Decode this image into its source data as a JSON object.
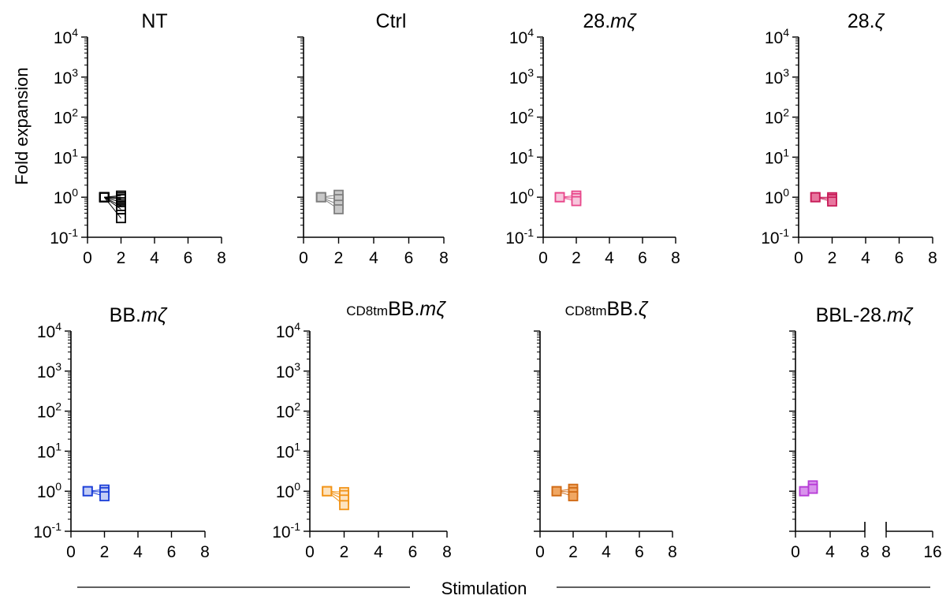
{
  "figure": {
    "ylabel": "Fold expansion",
    "xlabel": "Stimulation",
    "y_ticks": [
      {
        "base": "10",
        "exp": "4"
      },
      {
        "base": "10",
        "exp": "3"
      },
      {
        "base": "10",
        "exp": "2"
      },
      {
        "base": "10",
        "exp": "1"
      },
      {
        "base": "10",
        "exp": "0"
      },
      {
        "base": "10",
        "exp": "-1"
      }
    ]
  },
  "chart_data": [
    {
      "type": "line",
      "title": "NT",
      "title_parts": [
        {
          "text": "NT",
          "italic": false
        }
      ],
      "color": "#000000",
      "fill": "none",
      "y_scale": "log",
      "ylim": [
        0.1,
        10000
      ],
      "xlim": [
        0,
        8
      ],
      "xticks": [
        "0",
        "2",
        "4",
        "6",
        "8"
      ],
      "show_y_tick_labels": true,
      "ylabel_shown": true,
      "series": [
        {
          "x": [
            1,
            2
          ],
          "y": [
            1.0,
            1.1
          ]
        },
        {
          "x": [
            1,
            2
          ],
          "y": [
            1.0,
            1.0
          ]
        },
        {
          "x": [
            1,
            2
          ],
          "y": [
            1.0,
            0.9
          ]
        },
        {
          "x": [
            1,
            2
          ],
          "y": [
            1.0,
            0.75
          ]
        },
        {
          "x": [
            1,
            2
          ],
          "y": [
            1.0,
            0.6
          ]
        },
        {
          "x": [
            1,
            2
          ],
          "y": [
            1.0,
            0.5
          ]
        },
        {
          "x": [
            1,
            2
          ],
          "y": [
            1.0,
            0.3
          ]
        }
      ]
    },
    {
      "type": "line",
      "title": "Ctrl",
      "title_parts": [
        {
          "text": "Ctrl",
          "italic": false
        }
      ],
      "color": "#7f7f7f",
      "fill": "#c8c8c8",
      "y_scale": "log",
      "ylim": [
        0.1,
        10000
      ],
      "xlim": [
        0,
        8
      ],
      "xticks": [
        "0",
        "2",
        "4",
        "6",
        "8"
      ],
      "show_y_tick_labels": false,
      "series": [
        {
          "x": [
            1,
            2
          ],
          "y": [
            1.0,
            1.15
          ]
        },
        {
          "x": [
            1,
            2
          ],
          "y": [
            1.0,
            0.9
          ]
        },
        {
          "x": [
            1,
            2
          ],
          "y": [
            1.0,
            0.65
          ]
        },
        {
          "x": [
            1,
            2
          ],
          "y": [
            1.0,
            0.5
          ]
        }
      ]
    },
    {
      "type": "line",
      "title": "28.mζ",
      "title_parts": [
        {
          "text": "28.",
          "italic": false
        },
        {
          "text": "mζ",
          "italic": true
        }
      ],
      "color": "#e8488b",
      "fill": "#f7c6dc",
      "y_scale": "log",
      "ylim": [
        0.1,
        10000
      ],
      "xlim": [
        0,
        8
      ],
      "xticks": [
        "0",
        "2",
        "4",
        "6",
        "8"
      ],
      "show_y_tick_labels": true,
      "series": [
        {
          "x": [
            1,
            2
          ],
          "y": [
            1.0,
            1.1
          ]
        },
        {
          "x": [
            1,
            2
          ],
          "y": [
            1.0,
            0.95
          ]
        },
        {
          "x": [
            1,
            2
          ],
          "y": [
            1.0,
            0.8
          ]
        }
      ]
    },
    {
      "type": "line",
      "title": "28.ζ",
      "title_parts": [
        {
          "text": "28.",
          "italic": false
        },
        {
          "text": "ζ",
          "italic": true
        }
      ],
      "color": "#c81e5a",
      "fill": "#e8779f",
      "y_scale": "log",
      "ylim": [
        0.1,
        10000
      ],
      "xlim": [
        0,
        8
      ],
      "xticks": [
        "0",
        "2",
        "4",
        "6",
        "8"
      ],
      "show_y_tick_labels": true,
      "series": [
        {
          "x": [
            1,
            2
          ],
          "y": [
            1.0,
            1.0
          ]
        },
        {
          "x": [
            1,
            2
          ],
          "y": [
            1.0,
            0.9
          ]
        },
        {
          "x": [
            1,
            2
          ],
          "y": [
            1.0,
            0.78
          ]
        }
      ]
    },
    {
      "type": "line",
      "title": "BB.mζ",
      "title_parts": [
        {
          "text": "BB.",
          "italic": false
        },
        {
          "text": "mζ",
          "italic": true
        }
      ],
      "color": "#1c3fd8",
      "fill": "#c3cdf5",
      "y_scale": "log",
      "ylim": [
        0.1,
        10000
      ],
      "xlim": [
        0,
        8
      ],
      "xticks": [
        "0",
        "2",
        "4",
        "6",
        "8"
      ],
      "show_y_tick_labels": true,
      "ylabel_shown": true,
      "series": [
        {
          "x": [
            1,
            2
          ],
          "y": [
            1.0,
            1.1
          ]
        },
        {
          "x": [
            1,
            2
          ],
          "y": [
            1.0,
            0.95
          ]
        },
        {
          "x": [
            1,
            2
          ],
          "y": [
            1.0,
            0.75
          ]
        }
      ]
    },
    {
      "type": "line",
      "title": "CD8tmBB.mζ",
      "title_parts": [
        {
          "text": "CD8tm",
          "italic": false,
          "sup": true
        },
        {
          "text": "BB.",
          "italic": false
        },
        {
          "text": "mζ",
          "italic": true
        }
      ],
      "color": "#f29418",
      "fill": "#fde3bf",
      "y_scale": "log",
      "ylim": [
        0.1,
        10000
      ],
      "xlim": [
        0,
        8
      ],
      "xticks": [
        "0",
        "2",
        "4",
        "6",
        "8"
      ],
      "show_y_tick_labels": true,
      "series": [
        {
          "x": [
            1,
            2
          ],
          "y": [
            1.0,
            0.95
          ]
        },
        {
          "x": [
            1,
            2
          ],
          "y": [
            1.0,
            0.8
          ]
        },
        {
          "x": [
            1,
            2
          ],
          "y": [
            1.0,
            0.62
          ]
        },
        {
          "x": [
            1,
            2
          ],
          "y": [
            1.0,
            0.45
          ]
        }
      ]
    },
    {
      "type": "line",
      "title": "CD8tmBB.ζ",
      "title_parts": [
        {
          "text": "CD8tm",
          "italic": false,
          "sup": true
        },
        {
          "text": "BB.",
          "italic": false
        },
        {
          "text": "ζ",
          "italic": true
        }
      ],
      "color": "#d06a14",
      "fill": "#f0a763",
      "y_scale": "log",
      "ylim": [
        0.1,
        10000
      ],
      "xlim": [
        0,
        8
      ],
      "xticks": [
        "0",
        "2",
        "4",
        "6",
        "8"
      ],
      "show_y_tick_labels": false,
      "series": [
        {
          "x": [
            1,
            2
          ],
          "y": [
            1.0,
            1.15
          ]
        },
        {
          "x": [
            1,
            2
          ],
          "y": [
            1.0,
            0.95
          ]
        },
        {
          "x": [
            1,
            2
          ],
          "y": [
            1.0,
            0.75
          ]
        }
      ]
    },
    {
      "type": "line",
      "title": "BBL-28.mζ",
      "title_parts": [
        {
          "text": "BBL-28.",
          "italic": false
        },
        {
          "text": "mζ",
          "italic": true
        }
      ],
      "color": "#b63bd6",
      "fill": "#d994ec",
      "y_scale": "log",
      "ylim": [
        0.1,
        10000
      ],
      "xlim": [
        0,
        8
      ],
      "x_break": {
        "segments": [
          [
            0,
            8
          ],
          [
            8,
            16
          ]
        ]
      },
      "xticks": [
        "0",
        "4",
        "8",
        "8",
        "16"
      ],
      "show_y_tick_labels": false,
      "series": [
        {
          "x": [
            1,
            2
          ],
          "y": [
            1.0,
            1.4
          ]
        },
        {
          "x": [
            1,
            2
          ],
          "y": [
            1.0,
            1.15
          ]
        }
      ]
    }
  ]
}
